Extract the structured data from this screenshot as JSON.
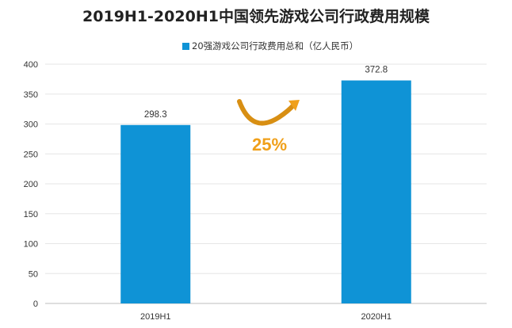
{
  "chart_data": {
    "type": "bar",
    "title": "2019H1-2020H1中国领先游戏公司行政费用规模",
    "categories": [
      "2019H1",
      "2020H1"
    ],
    "series": [
      {
        "name": "20强游戏公司行政费用总和（亿人民币）",
        "values": [
          298.3,
          372.8
        ]
      }
    ],
    "data_labels": [
      "298.3",
      "372.8"
    ],
    "ylim": [
      0,
      400
    ],
    "yticks": [
      0,
      50,
      100,
      150,
      200,
      250,
      300,
      350,
      400
    ],
    "legend_position": "top-center",
    "annotation": "25%",
    "bar_color": "#0f93d6",
    "annotation_color": "#f0a01a"
  }
}
